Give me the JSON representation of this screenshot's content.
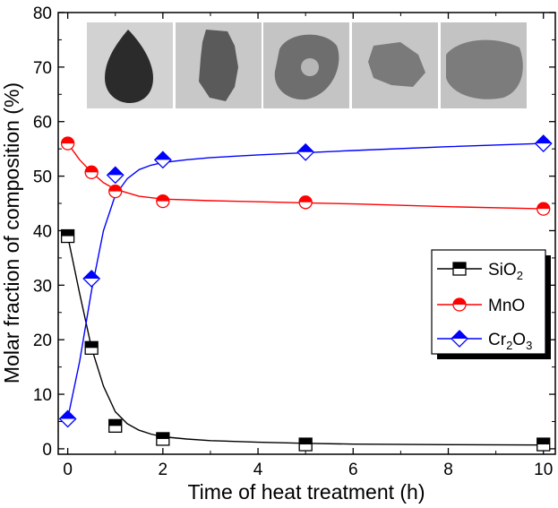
{
  "chart_data": {
    "type": "line",
    "xlabel": "Time of heat treatment (h)",
    "ylabel": "Molar fraction of composition (%)",
    "xlim": [
      -0.2,
      10.25
    ],
    "ylim": [
      -1,
      80
    ],
    "xticks": [
      0,
      2,
      4,
      6,
      8,
      10
    ],
    "yticks": [
      0,
      10,
      20,
      30,
      40,
      50,
      60,
      70,
      80
    ],
    "legend_position": "right",
    "series": [
      {
        "key": "sio2",
        "legend_main": "SiO",
        "legend_subs": [
          "2"
        ],
        "legend_parts": [
          "SiO",
          "2"
        ],
        "color": "#000000",
        "marker": "square-half",
        "x": [
          0,
          0.5,
          1,
          2,
          5,
          10
        ],
        "y": [
          39,
          18.5,
          4.2,
          1.8,
          0.8,
          0.8
        ],
        "curve": [
          [
            0,
            39
          ],
          [
            0.25,
            28.5
          ],
          [
            0.5,
            18.5
          ],
          [
            0.75,
            11.5
          ],
          [
            1,
            6.8
          ],
          [
            1.25,
            4.6
          ],
          [
            1.5,
            3.4
          ],
          [
            1.75,
            2.7
          ],
          [
            2,
            2.2
          ],
          [
            2.5,
            1.8
          ],
          [
            3,
            1.5
          ],
          [
            4,
            1.2
          ],
          [
            5,
            1.0
          ],
          [
            6,
            0.85
          ],
          [
            8,
            0.75
          ],
          [
            10,
            0.7
          ]
        ]
      },
      {
        "key": "mno",
        "legend_main": "MnO",
        "legend_subs": [],
        "legend_parts": [
          "MnO"
        ],
        "color": "#ff0000",
        "marker": "circle-half",
        "x": [
          0,
          0.5,
          1,
          2,
          5,
          10
        ],
        "y": [
          56,
          50.7,
          47.2,
          45.4,
          45.2,
          44
        ],
        "curve": [
          [
            0,
            56
          ],
          [
            0.25,
            53
          ],
          [
            0.5,
            50.7
          ],
          [
            0.75,
            48.8
          ],
          [
            1,
            47.6
          ],
          [
            1.5,
            46.3
          ],
          [
            2,
            45.8
          ],
          [
            3,
            45.5
          ],
          [
            4,
            45.3
          ],
          [
            5,
            45.1
          ],
          [
            6,
            44.9
          ],
          [
            8,
            44.4
          ],
          [
            10,
            44
          ]
        ]
      },
      {
        "key": "cr2o3",
        "legend_main": "Cr",
        "legend_subs": [
          "2",
          "3"
        ],
        "legend_parts": [
          "Cr",
          "2",
          "O",
          "3"
        ],
        "color": "#0000ff",
        "marker": "diamond-half",
        "x": [
          0,
          0.5,
          1,
          2,
          5,
          10
        ],
        "y": [
          5.5,
          31.2,
          50.2,
          53,
          54.4,
          56
        ],
        "curve": [
          [
            0,
            5.5
          ],
          [
            0.25,
            16
          ],
          [
            0.5,
            29
          ],
          [
            0.75,
            40
          ],
          [
            1,
            46.5
          ],
          [
            1.25,
            49.5
          ],
          [
            1.5,
            51.2
          ],
          [
            1.75,
            52
          ],
          [
            2,
            52.5
          ],
          [
            2.5,
            53
          ],
          [
            3,
            53.4
          ],
          [
            4,
            53.9
          ],
          [
            5,
            54.3
          ],
          [
            6,
            54.7
          ],
          [
            8,
            55.4
          ],
          [
            10,
            56
          ]
        ]
      }
    ],
    "inset_images": [
      {
        "name": "sample-photo-0h",
        "shape": "droplet",
        "bg": "#d2d2d2",
        "fg": "#2b2b2b"
      },
      {
        "name": "sample-photo-0-5h",
        "shape": "blob",
        "bg": "#c8c8c8",
        "fg": "#5a5a5a"
      },
      {
        "name": "sample-photo-1h",
        "shape": "ring",
        "bg": "#c4c4c4",
        "fg": "#6e6e6e"
      },
      {
        "name": "sample-photo-2h",
        "shape": "patch",
        "bg": "#c6c6c6",
        "fg": "#7a7a7a"
      },
      {
        "name": "sample-photo-5h",
        "shape": "wide",
        "bg": "#c3c3c3",
        "fg": "#7c7c7c"
      }
    ]
  }
}
